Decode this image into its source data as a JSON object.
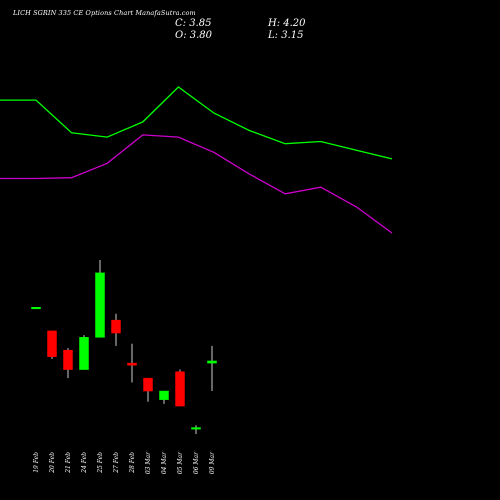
{
  "header": {
    "title": "LICH                    SGRIN  335 CE Options  Chart ManafaSutra.com",
    "close_label": "C: 3.85",
    "open_label": "O: 3.80",
    "high_label": "H: 4.20",
    "low_label": "L: 3.15"
  },
  "colors": {
    "background": "#000000",
    "up": "#00ff00",
    "down": "#ff0000",
    "line_upper": "#00ff00",
    "line_lower": "#cc00cc",
    "wick": "#ffffff"
  },
  "chart_data": {
    "type": "candlestick",
    "title": "",
    "xlabel": "",
    "ylabel": "",
    "ylim": [
      1.0,
      9.0
    ],
    "categories": [
      "19 Feb",
      "20 Feb",
      "21 Feb",
      "24 Feb",
      "25 Feb",
      "27 Feb",
      "28 Feb",
      "03 Mar",
      "04 Mar",
      "05 Mar",
      "06 Mar",
      "09 Mar"
    ],
    "candles": [
      {
        "date": "19 Feb",
        "open": 5.1,
        "high": 5.1,
        "low": 5.1,
        "close": 5.1
      },
      {
        "date": "20 Feb",
        "open": 4.55,
        "high": 4.55,
        "low": 3.9,
        "close": 3.95
      },
      {
        "date": "21 Feb",
        "open": 4.1,
        "high": 4.15,
        "low": 3.45,
        "close": 3.65
      },
      {
        "date": "24 Feb",
        "open": 3.65,
        "high": 4.45,
        "low": 3.65,
        "close": 4.4
      },
      {
        "date": "25 Feb",
        "open": 4.4,
        "high": 6.2,
        "low": 4.4,
        "close": 5.9
      },
      {
        "date": "27 Feb",
        "open": 4.8,
        "high": 4.95,
        "low": 4.2,
        "close": 4.5
      },
      {
        "date": "28 Feb",
        "open": 3.8,
        "high": 4.25,
        "low": 3.35,
        "close": 3.75
      },
      {
        "date": "03 Mar",
        "open": 3.45,
        "high": 3.45,
        "low": 2.9,
        "close": 3.15
      },
      {
        "date": "04 Mar",
        "open": 2.95,
        "high": 3.1,
        "low": 2.85,
        "close": 3.15
      },
      {
        "date": "05 Mar",
        "open": 3.6,
        "high": 3.65,
        "low": 2.8,
        "close": 2.8
      },
      {
        "date": "06 Mar",
        "open": 2.3,
        "high": 2.35,
        "low": 2.15,
        "close": 2.3
      },
      {
        "date": "09 Mar",
        "open": 3.8,
        "high": 4.2,
        "low": 3.15,
        "close": 3.85
      }
    ],
    "upper_line": [
      8.9,
      8.9,
      8.15,
      8.05,
      8.4,
      9.2,
      8.6,
      8.2,
      7.9,
      7.95,
      7.75,
      7.55
    ],
    "lower_line": [
      7.1,
      7.1,
      7.12,
      7.45,
      8.1,
      8.05,
      7.7,
      7.2,
      6.75,
      6.9,
      6.45,
      5.85
    ],
    "grid": false
  }
}
